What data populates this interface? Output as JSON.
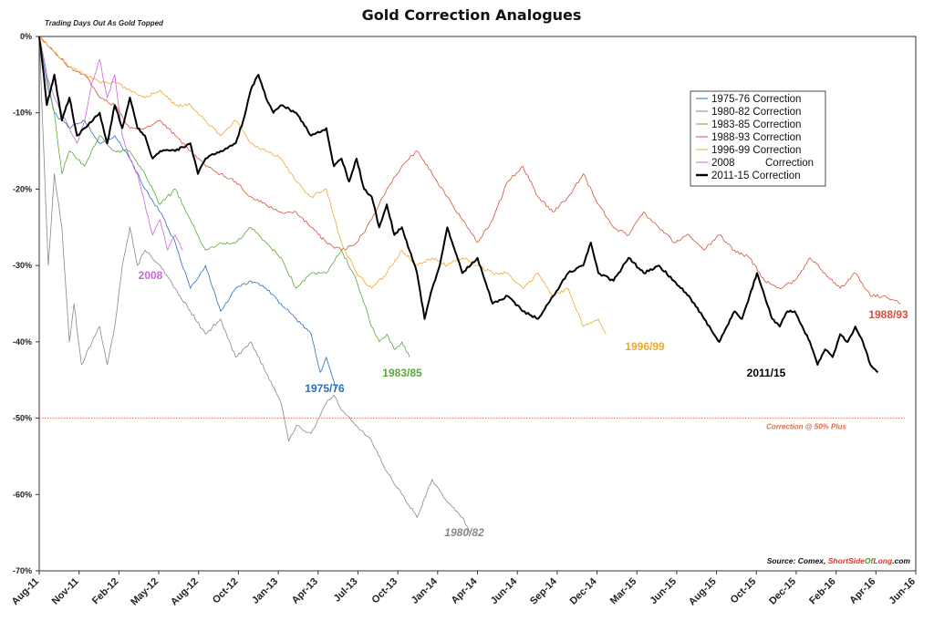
{
  "chart_data": {
    "type": "line",
    "title": "Gold Correction Analogues",
    "subtitle": "Trading Days Out As Gold Topped",
    "x_tick_labels": [
      "Aug-11",
      "Nov-11",
      "Feb-12",
      "May-12",
      "Aug-12",
      "Oct-12",
      "Jan-13",
      "Apr-13",
      "Jul-13",
      "Oct-13",
      "Jan-14",
      "Apr-14",
      "Jun-14",
      "Sep-14",
      "Dec-14",
      "Mar-15",
      "Jun-15",
      "Aug-15",
      "Oct-15",
      "Dec-15",
      "Feb-16",
      "Apr-16",
      "Jun-16"
    ],
    "y_ticks": [
      0,
      -10,
      -20,
      -30,
      -40,
      -50,
      -60,
      -70
    ],
    "y_tick_labels": [
      "0%",
      "-10%",
      "-20%",
      "-30%",
      "-40%",
      "-50%",
      "-60%",
      "-70%"
    ],
    "ylim": [
      -70,
      0
    ],
    "x_unit": "months after the 2011 top (x-axis dated to the 2011 top)",
    "x_end": 58,
    "grid": false,
    "legend_position": "top-right",
    "series": [
      {
        "name": "1975-76 Correction",
        "end_label": "1975/76",
        "color": "#2a6fc1",
        "width": 0.8,
        "points": [
          [
            0,
            0
          ],
          [
            0.5,
            -6
          ],
          [
            1,
            -10
          ],
          [
            2,
            -12
          ],
          [
            3,
            -11
          ],
          [
            4,
            -14
          ],
          [
            5,
            -13
          ],
          [
            6,
            -16
          ],
          [
            7,
            -20
          ],
          [
            8,
            -23
          ],
          [
            9,
            -27
          ],
          [
            10,
            -33
          ],
          [
            11,
            -30
          ],
          [
            12,
            -36
          ],
          [
            13,
            -33
          ],
          [
            14,
            -32
          ],
          [
            15,
            -33
          ],
          [
            16,
            -35
          ],
          [
            17,
            -37
          ],
          [
            18,
            -39
          ],
          [
            18.6,
            -44
          ],
          [
            19,
            -42
          ],
          [
            19.6,
            -46
          ]
        ]
      },
      {
        "name": "1980-82 Correction",
        "end_label": "1980/82",
        "color": "#888888",
        "width": 0.8,
        "points": [
          [
            0,
            0
          ],
          [
            0.3,
            -15
          ],
          [
            0.6,
            -30
          ],
          [
            1,
            -18
          ],
          [
            1.5,
            -25
          ],
          [
            2,
            -40
          ],
          [
            2.3,
            -35
          ],
          [
            2.8,
            -43
          ],
          [
            3.5,
            -40
          ],
          [
            4,
            -38
          ],
          [
            4.5,
            -43
          ],
          [
            5,
            -38
          ],
          [
            5.5,
            -30
          ],
          [
            6,
            -25
          ],
          [
            6.5,
            -30
          ],
          [
            7,
            -28
          ],
          [
            8,
            -30
          ],
          [
            9,
            -33
          ],
          [
            10,
            -36
          ],
          [
            11,
            -39
          ],
          [
            12,
            -37
          ],
          [
            13,
            -42
          ],
          [
            14,
            -40
          ],
          [
            15,
            -44
          ],
          [
            16,
            -48
          ],
          [
            16.5,
            -53
          ],
          [
            17,
            -51
          ],
          [
            18,
            -52
          ],
          [
            19,
            -48
          ],
          [
            19.5,
            -47
          ],
          [
            20,
            -49
          ],
          [
            21,
            -51
          ],
          [
            22,
            -53
          ],
          [
            23,
            -57
          ],
          [
            24,
            -60
          ],
          [
            25,
            -63
          ],
          [
            26,
            -58
          ],
          [
            27,
            -61
          ],
          [
            28,
            -63
          ],
          [
            28.5,
            -65
          ]
        ]
      },
      {
        "name": "1983-85 Correction",
        "end_label": "1983/85",
        "color": "#5aa839",
        "width": 0.8,
        "points": [
          [
            0,
            0
          ],
          [
            1,
            -10
          ],
          [
            1.5,
            -18
          ],
          [
            2,
            -15
          ],
          [
            3,
            -17
          ],
          [
            4,
            -13
          ],
          [
            5,
            -15
          ],
          [
            6,
            -15
          ],
          [
            7,
            -18
          ],
          [
            8,
            -22
          ],
          [
            9,
            -20
          ],
          [
            10,
            -24
          ],
          [
            11,
            -28
          ],
          [
            12,
            -27
          ],
          [
            13,
            -27
          ],
          [
            14,
            -25
          ],
          [
            15,
            -27
          ],
          [
            16,
            -29
          ],
          [
            17,
            -33
          ],
          [
            18,
            -31
          ],
          [
            19,
            -31
          ],
          [
            20,
            -28
          ],
          [
            21,
            -32
          ],
          [
            21.5,
            -35
          ],
          [
            22,
            -38
          ],
          [
            22.5,
            -40
          ],
          [
            23,
            -39
          ],
          [
            23.5,
            -41
          ],
          [
            24,
            -40
          ],
          [
            24.5,
            -42
          ]
        ]
      },
      {
        "name": "1988-93 Correction",
        "end_label": "1988/93",
        "color": "#d9503a",
        "width": 0.8,
        "points": [
          [
            0,
            0
          ],
          [
            1,
            -2
          ],
          [
            2,
            -4
          ],
          [
            3,
            -5
          ],
          [
            4,
            -8
          ],
          [
            5,
            -9
          ],
          [
            6,
            -12
          ],
          [
            7,
            -12
          ],
          [
            8,
            -11
          ],
          [
            9,
            -13
          ],
          [
            10,
            -15
          ],
          [
            11,
            -17
          ],
          [
            12,
            -18
          ],
          [
            13,
            -19
          ],
          [
            14,
            -21
          ],
          [
            15,
            -22
          ],
          [
            16,
            -23
          ],
          [
            17,
            -23
          ],
          [
            18,
            -25
          ],
          [
            19,
            -27
          ],
          [
            20,
            -28
          ],
          [
            21,
            -27
          ],
          [
            22,
            -24
          ],
          [
            23,
            -20
          ],
          [
            24,
            -17
          ],
          [
            25,
            -15
          ],
          [
            26,
            -18
          ],
          [
            27,
            -21
          ],
          [
            28,
            -24
          ],
          [
            29,
            -27
          ],
          [
            30,
            -24
          ],
          [
            31,
            -19
          ],
          [
            32,
            -17
          ],
          [
            33,
            -21
          ],
          [
            34,
            -23
          ],
          [
            35,
            -21
          ],
          [
            36,
            -18
          ],
          [
            37,
            -22
          ],
          [
            38,
            -25
          ],
          [
            39,
            -26
          ],
          [
            40,
            -23
          ],
          [
            41,
            -25
          ],
          [
            42,
            -27
          ],
          [
            43,
            -26
          ],
          [
            44,
            -28
          ],
          [
            45,
            -26
          ],
          [
            46,
            -28
          ],
          [
            47,
            -29
          ],
          [
            48,
            -32
          ],
          [
            49,
            -33
          ],
          [
            50,
            -32
          ],
          [
            51,
            -29
          ],
          [
            52,
            -31
          ],
          [
            53,
            -33
          ],
          [
            54,
            -31
          ],
          [
            55,
            -34
          ],
          [
            56,
            -34
          ],
          [
            57,
            -35
          ]
        ]
      },
      {
        "name": "1996-99 Correction",
        "end_label": "1996/99",
        "color": "#f0a830",
        "width": 0.8,
        "points": [
          [
            0,
            0
          ],
          [
            1,
            -2
          ],
          [
            2,
            -4
          ],
          [
            3,
            -5
          ],
          [
            4,
            -6
          ],
          [
            5,
            -6
          ],
          [
            6,
            -7
          ],
          [
            7,
            -8
          ],
          [
            8,
            -7
          ],
          [
            9,
            -9
          ],
          [
            10,
            -9
          ],
          [
            11,
            -11
          ],
          [
            12,
            -13
          ],
          [
            13,
            -11
          ],
          [
            14,
            -14
          ],
          [
            15,
            -15
          ],
          [
            16,
            -16
          ],
          [
            17,
            -19
          ],
          [
            18,
            -21
          ],
          [
            19,
            -20
          ],
          [
            20,
            -27
          ],
          [
            21,
            -31
          ],
          [
            22,
            -33
          ],
          [
            23,
            -31
          ],
          [
            24,
            -28
          ],
          [
            25,
            -30
          ],
          [
            26,
            -29
          ],
          [
            27,
            -30
          ],
          [
            28,
            -29
          ],
          [
            29,
            -30
          ],
          [
            30,
            -31
          ],
          [
            31,
            -31
          ],
          [
            32,
            -33
          ],
          [
            33,
            -31
          ],
          [
            34,
            -34
          ],
          [
            35,
            -33
          ],
          [
            36,
            -38
          ],
          [
            37,
            -37
          ],
          [
            37.5,
            -39
          ]
        ]
      },
      {
        "name": "2008 Correction",
        "end_label": "2008",
        "color": "#cc66dd",
        "width": 0.8,
        "points": [
          [
            0,
            0
          ],
          [
            0.5,
            -5
          ],
          [
            1,
            -8
          ],
          [
            1.5,
            -10
          ],
          [
            2,
            -12
          ],
          [
            2.5,
            -14
          ],
          [
            3,
            -11
          ],
          [
            3.5,
            -6
          ],
          [
            4,
            -3
          ],
          [
            4.5,
            -8
          ],
          [
            5,
            -5
          ],
          [
            5.5,
            -13
          ],
          [
            6,
            -16
          ],
          [
            6.5,
            -18
          ],
          [
            7,
            -22
          ],
          [
            7.5,
            -26
          ],
          [
            8,
            -24
          ],
          [
            8.5,
            -28
          ],
          [
            9,
            -26
          ],
          [
            9.5,
            -28
          ]
        ]
      },
      {
        "name": "2011-15 Correction",
        "end_label": "2011/15",
        "color": "#000000",
        "width": 2,
        "points": [
          [
            0,
            0
          ],
          [
            0.3,
            -5
          ],
          [
            0.5,
            -9
          ],
          [
            1,
            -5
          ],
          [
            1.5,
            -11
          ],
          [
            2,
            -8
          ],
          [
            2.5,
            -13
          ],
          [
            3,
            -12
          ],
          [
            4,
            -10
          ],
          [
            4.5,
            -14
          ],
          [
            5,
            -9
          ],
          [
            5.5,
            -12
          ],
          [
            6,
            -8
          ],
          [
            6.5,
            -12
          ],
          [
            7,
            -13
          ],
          [
            7.5,
            -16
          ],
          [
            8,
            -15
          ],
          [
            9,
            -15
          ],
          [
            10,
            -14
          ],
          [
            10.5,
            -18
          ],
          [
            11,
            -16
          ],
          [
            12,
            -15
          ],
          [
            13,
            -14
          ],
          [
            13.5,
            -11
          ],
          [
            14,
            -7
          ],
          [
            14.5,
            -5
          ],
          [
            15,
            -8
          ],
          [
            15.5,
            -10
          ],
          [
            16,
            -9
          ],
          [
            17,
            -10
          ],
          [
            18,
            -13
          ],
          [
            19,
            -12
          ],
          [
            19.5,
            -17
          ],
          [
            20,
            -16
          ],
          [
            20.5,
            -19
          ],
          [
            21,
            -16
          ],
          [
            21.5,
            -20
          ],
          [
            22,
            -21
          ],
          [
            22.5,
            -25
          ],
          [
            23,
            -22
          ],
          [
            23.5,
            -26
          ],
          [
            24,
            -25
          ],
          [
            24.5,
            -28
          ],
          [
            25,
            -31
          ],
          [
            25.5,
            -37
          ],
          [
            26,
            -33
          ],
          [
            26.5,
            -30
          ],
          [
            27,
            -25
          ],
          [
            27.5,
            -28
          ],
          [
            28,
            -31
          ],
          [
            29,
            -29
          ],
          [
            30,
            -35
          ],
          [
            31,
            -34
          ],
          [
            32,
            -36
          ],
          [
            33,
            -37
          ],
          [
            34,
            -34
          ],
          [
            35,
            -31
          ],
          [
            36,
            -30
          ],
          [
            36.5,
            -27
          ],
          [
            37,
            -31
          ],
          [
            38,
            -32
          ],
          [
            39,
            -29
          ],
          [
            40,
            -31
          ],
          [
            41,
            -30
          ],
          [
            42,
            -32
          ],
          [
            43,
            -34
          ],
          [
            44,
            -37
          ],
          [
            45,
            -40
          ],
          [
            45.5,
            -38
          ],
          [
            46,
            -36
          ],
          [
            46.5,
            -37
          ],
          [
            47,
            -34
          ],
          [
            47.5,
            -31
          ],
          [
            48,
            -34
          ],
          [
            48.5,
            -37
          ],
          [
            49,
            -38
          ],
          [
            49.5,
            -36
          ],
          [
            50,
            -36
          ],
          [
            50.5,
            -38
          ],
          [
            51,
            -40
          ],
          [
            51.5,
            -43
          ],
          [
            52,
            -41
          ],
          [
            52.5,
            -42
          ],
          [
            53,
            -39
          ],
          [
            53.5,
            -40
          ],
          [
            54,
            -38
          ],
          [
            54.5,
            -40
          ],
          [
            55,
            -43
          ],
          [
            55.5,
            -44
          ]
        ]
      }
    ],
    "reference_line": {
      "y": -50,
      "label": "Correction @ 50% Plus",
      "color": "#e06a4a"
    },
    "source_prefix": "Source: Comex, ",
    "source_brand_red": "ShortSide",
    "source_brand_green": "Of",
    "source_brand_red2": "Long",
    "source_suffix": ".com",
    "colors": {
      "source_red": "#e0352b",
      "source_green": "#3aa13a"
    }
  }
}
